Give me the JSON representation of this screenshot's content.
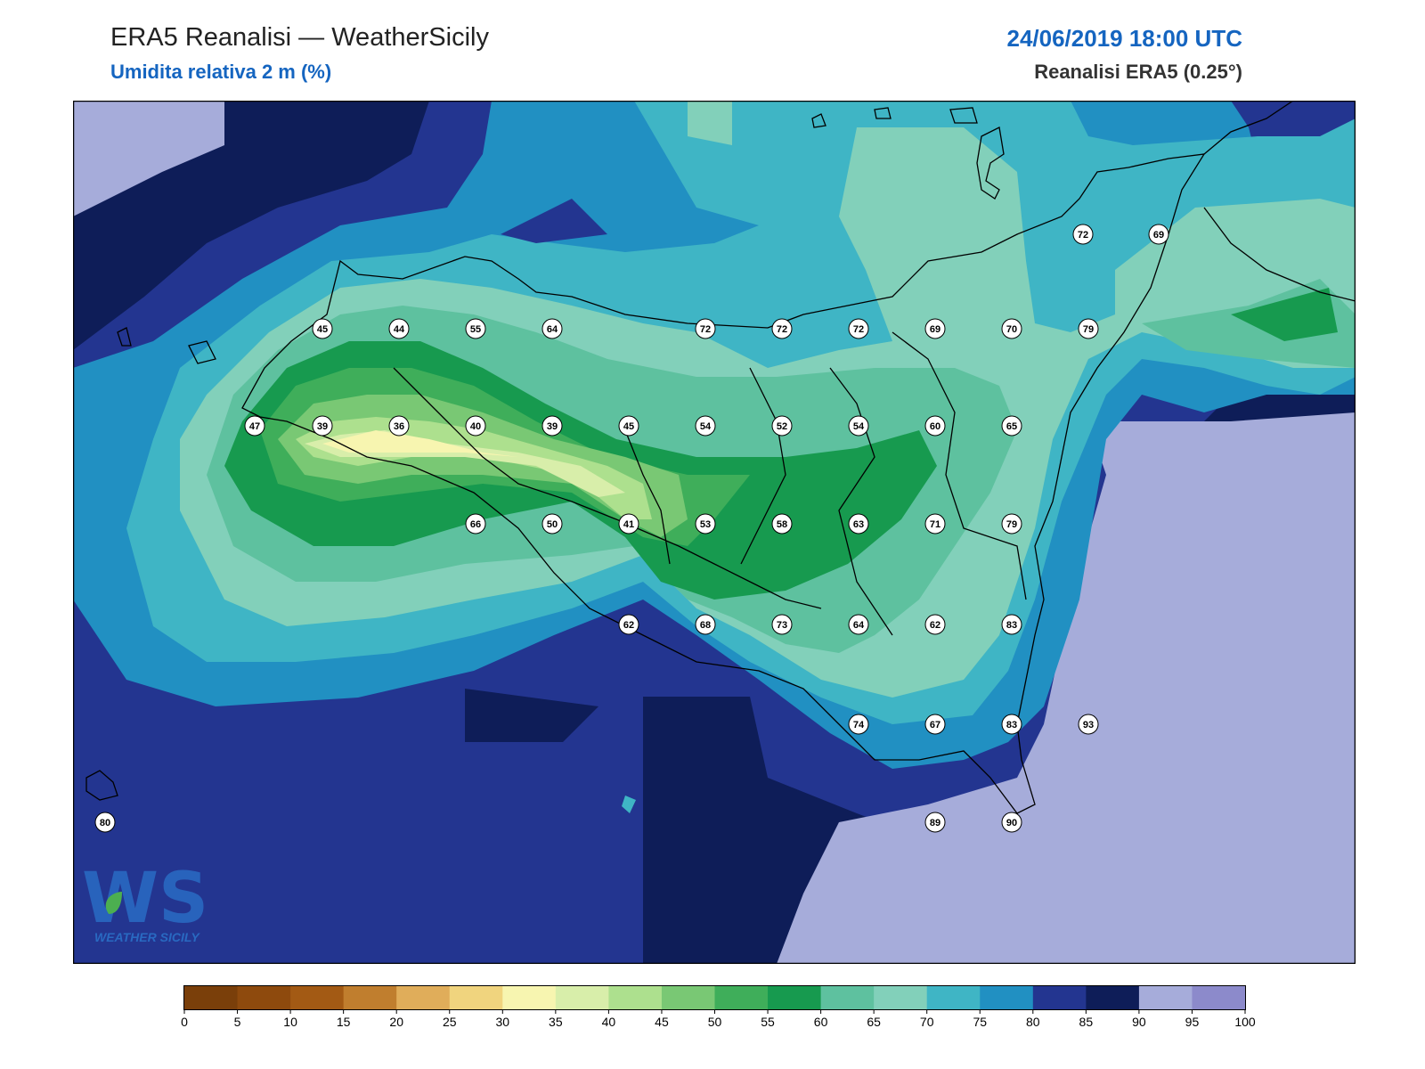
{
  "header": {
    "title": "ERA5 Reanalisi — WeatherSicily",
    "subtitle": "Umidita relativa 2 m (%)",
    "datetime": "24/06/2019 18:00 UTC",
    "source": "Reanalisi ERA5 (0.25°)"
  },
  "logo": {
    "monogram": "WS",
    "text": "WEATHER SICILY"
  },
  "colorbar": {
    "levels": [
      0,
      5,
      10,
      15,
      20,
      25,
      30,
      35,
      40,
      45,
      50,
      55,
      60,
      65,
      70,
      75,
      80,
      85,
      90,
      95,
      100
    ],
    "colors": [
      "#7a3f0a",
      "#8e4a0d",
      "#a35a14",
      "#c07e2e",
      "#e0ad5a",
      "#f0d47e",
      "#f7f5b0",
      "#d8eeaa",
      "#ade08e",
      "#79c874",
      "#3fae5a",
      "#179a4f",
      "#5ec19f",
      "#82d0ba",
      "#3fb5c5",
      "#2190c2",
      "#233590",
      "#0e1d58",
      "#a6acda",
      "#8c8acb"
    ]
  },
  "field_colors": {
    "rh95": "#a6acda",
    "rh90": "#0e1d58",
    "rh85": "#233590",
    "rh80": "#2190c2",
    "rh75": "#3fb5c5",
    "rh70": "#82d0ba",
    "rh65": "#5ec19f",
    "rh60": "#179a4f",
    "rh55": "#3fae5a",
    "rh50": "#79c874",
    "rh45": "#ade08e",
    "rh40": "#d8eeaa",
    "rh35": "#f7f5b0"
  },
  "stations": [
    {
      "v": "72"
    },
    {
      "v": "69"
    },
    {
      "v": "45"
    },
    {
      "v": "44"
    },
    {
      "v": "55"
    },
    {
      "v": "64"
    },
    {
      "v": "72"
    },
    {
      "v": "72"
    },
    {
      "v": "72"
    },
    {
      "v": "69"
    },
    {
      "v": "70"
    },
    {
      "v": "79"
    },
    {
      "v": "47"
    },
    {
      "v": "39"
    },
    {
      "v": "36"
    },
    {
      "v": "40"
    },
    {
      "v": "39"
    },
    {
      "v": "45"
    },
    {
      "v": "54"
    },
    {
      "v": "52"
    },
    {
      "v": "54"
    },
    {
      "v": "60"
    },
    {
      "v": "65"
    },
    {
      "v": "66"
    },
    {
      "v": "50"
    },
    {
      "v": "41"
    },
    {
      "v": "53"
    },
    {
      "v": "58"
    },
    {
      "v": "63"
    },
    {
      "v": "71"
    },
    {
      "v": "79"
    },
    {
      "v": "62"
    },
    {
      "v": "68"
    },
    {
      "v": "73"
    },
    {
      "v": "64"
    },
    {
      "v": "62"
    },
    {
      "v": "83"
    },
    {
      "v": "74"
    },
    {
      "v": "67"
    },
    {
      "v": "83"
    },
    {
      "v": "93"
    },
    {
      "v": "80"
    },
    {
      "v": "89"
    },
    {
      "v": "90"
    }
  ]
}
